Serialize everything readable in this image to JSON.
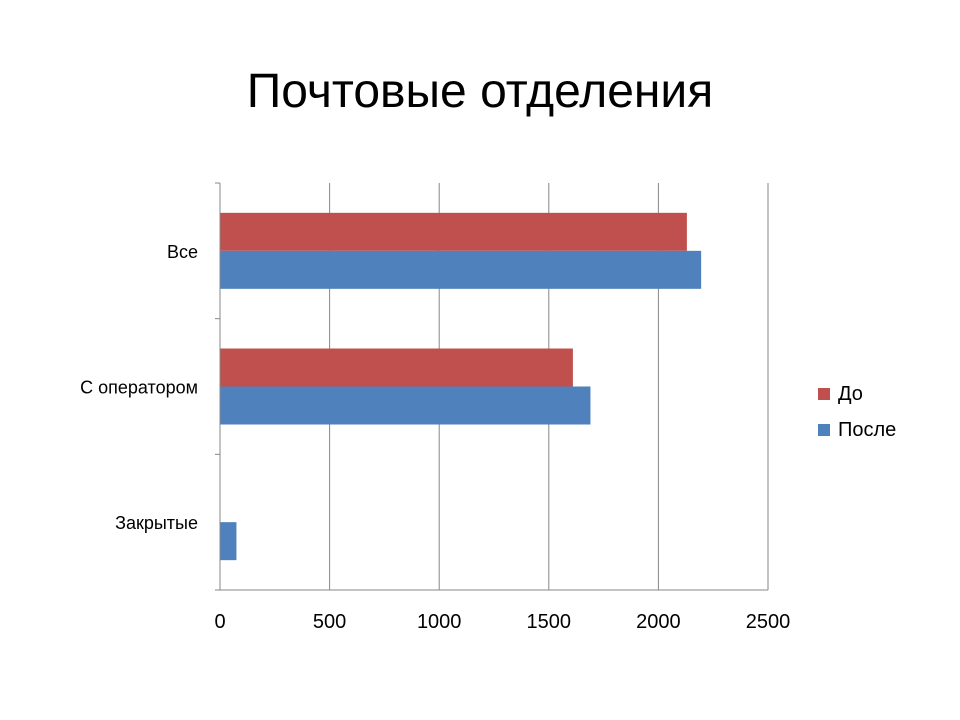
{
  "slide": {
    "title": "Почтовые отделения"
  },
  "chart_data": {
    "type": "bar",
    "orientation": "horizontal",
    "categories": [
      "Все",
      "С оператором",
      "Закрытые"
    ],
    "series": [
      {
        "name": "До",
        "values": [
          2130,
          1610,
          0
        ],
        "color": "#c0504d"
      },
      {
        "name": "После",
        "values": [
          2195,
          1690,
          75
        ],
        "color": "#4f81bd"
      }
    ],
    "xlim": [
      0,
      2500
    ],
    "xticks": [
      0,
      500,
      1000,
      1500,
      2000,
      2500
    ],
    "grid": true,
    "legend_position": "right"
  }
}
